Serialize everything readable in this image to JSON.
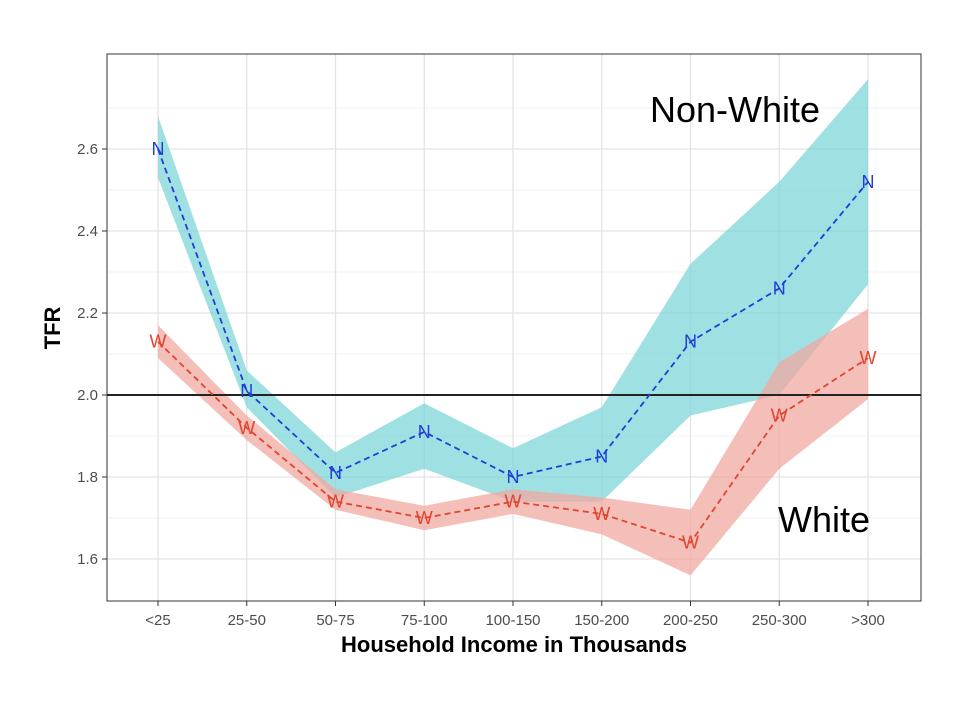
{
  "chart_data": {
    "type": "line",
    "title": "",
    "xlabel": "Household Income in Thousands",
    "ylabel": "TFR",
    "categories": [
      "<25",
      "25-50",
      "50-75",
      "75-100",
      "100-150",
      "150-200",
      "200-250",
      "250-300",
      ">300"
    ],
    "ylim": [
      1.5,
      2.85
    ],
    "yticks": [
      1.6,
      1.8,
      2.0,
      2.2,
      2.4,
      2.6
    ],
    "ytick_labels": [
      "1.6",
      "1.8",
      "2.0",
      "2.2",
      "2.4",
      "2.6"
    ],
    "reference_line": 2.0,
    "grid": true,
    "series": [
      {
        "name": "Non-White",
        "marker": "N",
        "color": "#1f3fd6",
        "band_color": "#7fd6da",
        "values": [
          2.6,
          2.01,
          1.81,
          1.91,
          1.8,
          1.85,
          2.13,
          2.26,
          2.52
        ],
        "lower": [
          2.53,
          1.97,
          1.75,
          1.82,
          1.74,
          1.74,
          1.95,
          2.0,
          2.27
        ],
        "upper": [
          2.68,
          2.06,
          1.86,
          1.98,
          1.87,
          1.97,
          2.32,
          2.52,
          2.77
        ]
      },
      {
        "name": "White",
        "marker": "W",
        "color": "#e0452f",
        "band_color": "#f0a9a2",
        "values": [
          2.13,
          1.92,
          1.74,
          1.7,
          1.74,
          1.71,
          1.64,
          1.95,
          2.09
        ],
        "lower": [
          2.09,
          1.89,
          1.72,
          1.67,
          1.71,
          1.66,
          1.56,
          1.82,
          1.99
        ],
        "upper": [
          2.17,
          1.95,
          1.77,
          1.73,
          1.77,
          1.75,
          1.72,
          2.08,
          2.21
        ]
      }
    ],
    "annotations": [
      {
        "text": "Non-White",
        "series": "Non-White"
      },
      {
        "text": "White",
        "series": "White"
      }
    ]
  }
}
